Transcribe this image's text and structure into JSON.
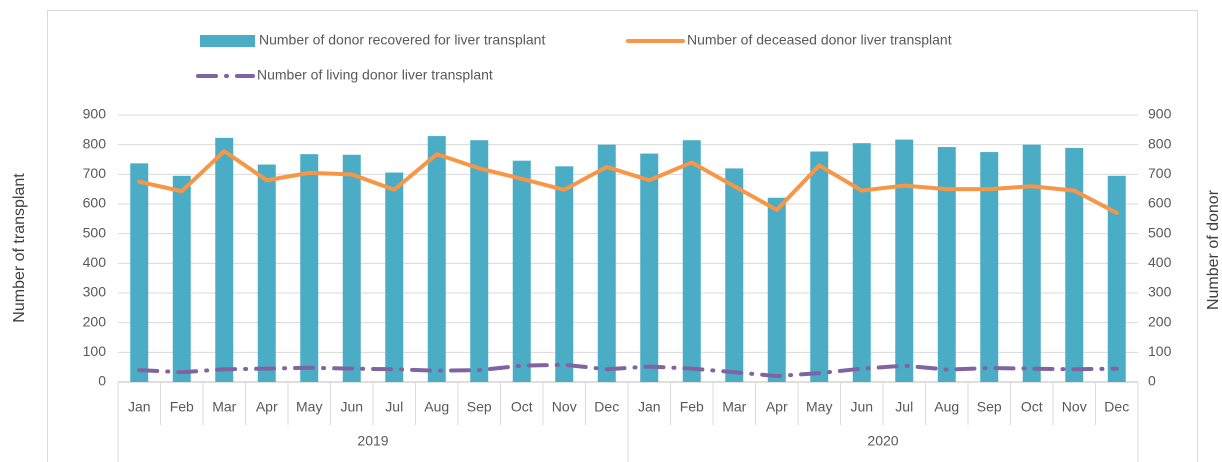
{
  "chart_data": {
    "type": "bar-line",
    "categories": [
      "Jan",
      "Feb",
      "Mar",
      "Apr",
      "May",
      "Jun",
      "Jul",
      "Aug",
      "Sep",
      "Oct",
      "Nov",
      "Dec",
      "Jan",
      "Feb",
      "Mar",
      "Apr",
      "May",
      "Jun",
      "Jul",
      "Aug",
      "Sep",
      "Oct",
      "Nov",
      "Dec"
    ],
    "groups": [
      "2019",
      "2020"
    ],
    "y_label": "Number of transplant",
    "y2_label": "Number of donor",
    "ylim": [
      0,
      900
    ],
    "yticks": [
      0,
      100,
      200,
      300,
      400,
      500,
      600,
      700,
      800,
      900
    ],
    "y2lim": [
      0,
      900
    ],
    "y2ticks": [
      0,
      100,
      200,
      300,
      400,
      500,
      600,
      700,
      800,
      900
    ],
    "series": [
      {
        "name": "Number of donor recovered for liver transplant",
        "type": "bar",
        "axis": "y2",
        "color": "#4bacc6",
        "values": [
          737,
          695,
          823,
          733,
          768,
          766,
          706,
          829,
          815,
          746,
          727,
          800,
          770,
          815,
          720,
          621,
          777,
          805,
          817,
          792,
          775,
          800,
          789,
          695
        ]
      },
      {
        "name": "Number of deceased donor liver transplant",
        "type": "line",
        "color": "#f79646",
        "values": [
          675,
          643,
          778,
          680,
          705,
          700,
          648,
          768,
          720,
          685,
          648,
          725,
          680,
          740,
          660,
          580,
          730,
          645,
          662,
          650,
          650,
          660,
          645,
          570
        ]
      },
      {
        "name": "Number of living donor liver transplant",
        "type": "dashdot",
        "color": "#8064a2",
        "values": [
          40,
          33,
          43,
          45,
          48,
          45,
          43,
          38,
          40,
          55,
          58,
          43,
          52,
          45,
          33,
          20,
          30,
          45,
          55,
          42,
          47,
          45,
          43,
          45
        ]
      }
    ]
  }
}
